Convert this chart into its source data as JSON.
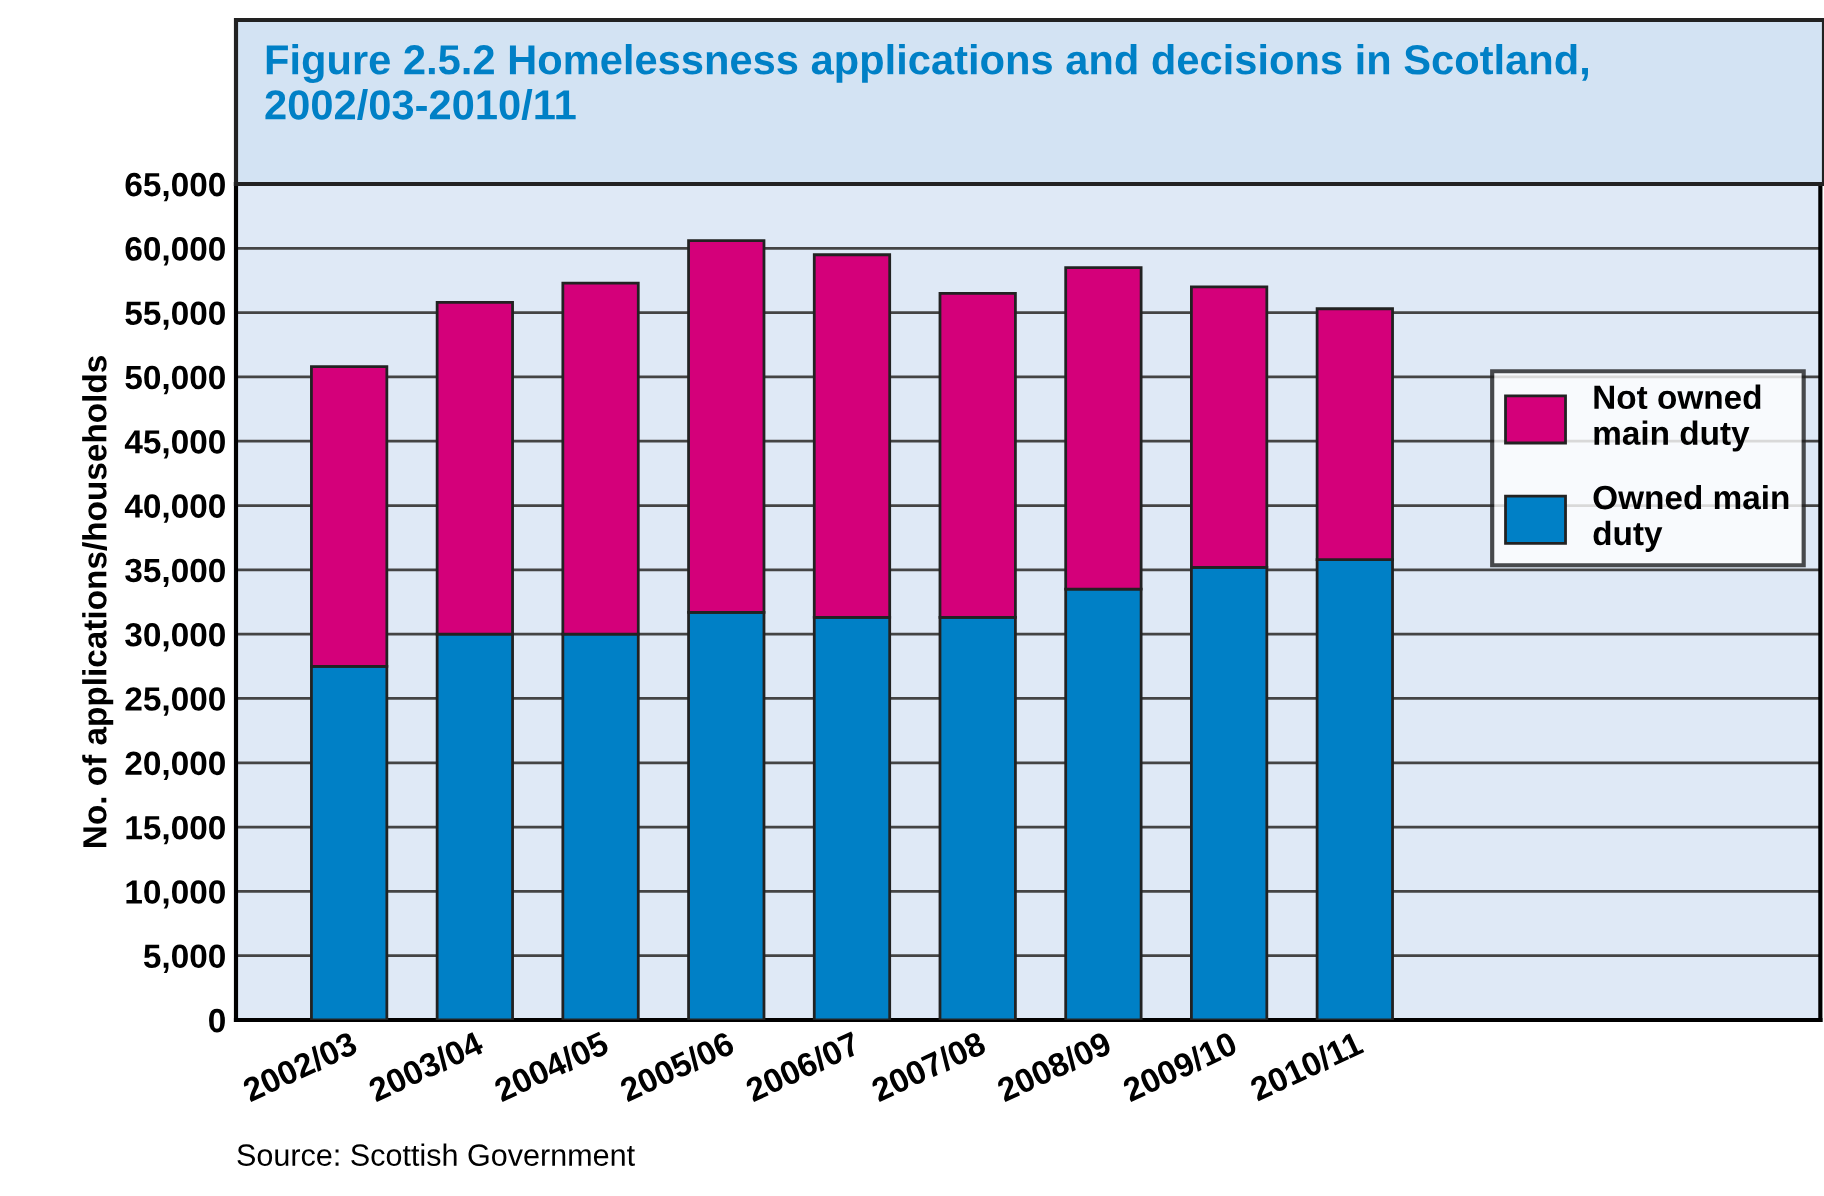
{
  "chart_data": {
    "type": "bar",
    "title": "Figure 2.5.2 Homelessness applications and decisions in Scotland, 2002/03-2010/11",
    "ylabel": "No. of applications/households",
    "categories": [
      "2002/03",
      "2003/04",
      "2004/05",
      "2005/06",
      "2006/07",
      "2007/08",
      "2008/09",
      "2009/10",
      "2010/11"
    ],
    "stacked": true,
    "series": [
      {
        "name": "Owned main duty",
        "color": "#0080c6",
        "values": [
          27500,
          30000,
          30000,
          31700,
          31300,
          31300,
          33500,
          35200,
          35800
        ]
      },
      {
        "name": "Not owned main duty",
        "color": "#d4007a",
        "values": [
          23300,
          25800,
          27300,
          28900,
          28200,
          25200,
          25000,
          21800,
          19500
        ]
      }
    ],
    "ylim": [
      0,
      65000
    ],
    "yticks": [
      {
        "value": 0,
        "label": "0"
      },
      {
        "value": 5000,
        "label": "5,000"
      },
      {
        "value": 10000,
        "label": "10,000"
      },
      {
        "value": 15000,
        "label": "15,000"
      },
      {
        "value": 20000,
        "label": "20,000"
      },
      {
        "value": 25000,
        "label": "25,000"
      },
      {
        "value": 30000,
        "label": "30,000"
      },
      {
        "value": 35000,
        "label": "35,000"
      },
      {
        "value": 40000,
        "label": "40,000"
      },
      {
        "value": 45000,
        "label": "45,000"
      },
      {
        "value": 50000,
        "label": "50,000"
      },
      {
        "value": 55000,
        "label": "55,000"
      },
      {
        "value": 60000,
        "label": "60,000"
      },
      {
        "value": 65000,
        "label": "65,000"
      }
    ],
    "grid": "y",
    "legend": "right",
    "annotations": [
      "Source: Scottish Government"
    ]
  }
}
